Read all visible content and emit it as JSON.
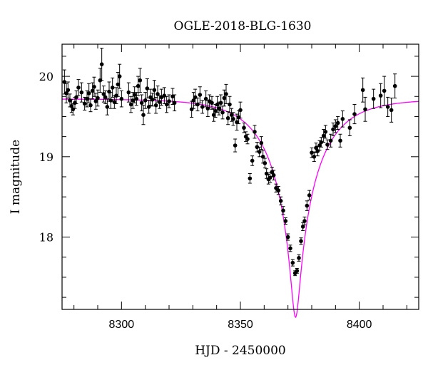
{
  "chart_data": {
    "type": "scatter",
    "title": "OGLE-2018-BLG-1630",
    "xlabel": "HJD - 2450000",
    "ylabel": "I magnitude",
    "xlim": [
      8275,
      8425
    ],
    "ylim": [
      20.4,
      17.1
    ],
    "y_inverted": true,
    "grid": false,
    "x_ticks": [
      8300,
      8350,
      8400
    ],
    "x_minor_step": 10,
    "y_ticks": [
      18,
      19,
      20
    ],
    "y_minor_step": 0.25,
    "points_color": "#000000",
    "model_color": "#ff00ff",
    "model": {
      "t0": 8373.2,
      "u0": 0.082,
      "tE": 20.5,
      "baseline_mag": 19.72
    },
    "series": [
      {
        "points": [
          [
            8276.0,
            19.93,
            0.15
          ],
          [
            8276.8,
            19.79,
            0.12
          ],
          [
            8277.5,
            19.83,
            0.1
          ],
          [
            8278.3,
            19.7,
            0.08
          ],
          [
            8279.0,
            19.63,
            0.08
          ],
          [
            8279.6,
            19.59,
            0.07
          ],
          [
            8280.4,
            19.67,
            0.07
          ],
          [
            8281.0,
            19.74,
            0.08
          ],
          [
            8281.9,
            19.86,
            0.1
          ],
          [
            8283.2,
            19.8,
            0.12
          ],
          [
            8284.5,
            19.66,
            0.08
          ],
          [
            8285.5,
            19.72,
            0.1
          ],
          [
            8286.3,
            19.79,
            0.12
          ],
          [
            8287.0,
            19.64,
            0.08
          ],
          [
            8287.8,
            19.82,
            0.1
          ],
          [
            8288.5,
            19.87,
            0.12
          ],
          [
            8289.2,
            19.69,
            0.1
          ],
          [
            8290.0,
            19.73,
            0.1
          ],
          [
            8291.0,
            19.95,
            0.15
          ],
          [
            8291.7,
            20.15,
            0.2
          ],
          [
            8292.5,
            19.78,
            0.1
          ],
          [
            8293.2,
            19.74,
            0.08
          ],
          [
            8294.0,
            19.62,
            0.1
          ],
          [
            8294.8,
            19.81,
            0.12
          ],
          [
            8295.5,
            19.7,
            0.1
          ],
          [
            8296.2,
            19.86,
            0.12
          ],
          [
            8297.0,
            19.68,
            0.08
          ],
          [
            8297.8,
            19.76,
            0.1
          ],
          [
            8298.5,
            19.9,
            0.15
          ],
          [
            8299.2,
            20.0,
            0.15
          ],
          [
            8300.0,
            19.72,
            0.1
          ],
          [
            8303.0,
            19.8,
            0.12
          ],
          [
            8304.0,
            19.65,
            0.1
          ],
          [
            8304.8,
            19.7,
            0.1
          ],
          [
            8305.5,
            19.77,
            0.1
          ],
          [
            8306.3,
            19.72,
            0.08
          ],
          [
            8307.0,
            19.88,
            0.12
          ],
          [
            8307.8,
            19.95,
            0.15
          ],
          [
            8308.5,
            19.67,
            0.1
          ],
          [
            8309.2,
            19.52,
            0.12
          ],
          [
            8310.0,
            19.7,
            0.1
          ],
          [
            8310.8,
            19.85,
            0.12
          ],
          [
            8311.5,
            19.62,
            0.08
          ],
          [
            8312.2,
            19.74,
            0.1
          ],
          [
            8313.0,
            19.71,
            0.08
          ],
          [
            8313.8,
            19.83,
            0.12
          ],
          [
            8314.5,
            19.64,
            0.1
          ],
          [
            8315.2,
            19.78,
            0.1
          ],
          [
            8316.0,
            19.68,
            0.08
          ],
          [
            8316.8,
            19.74,
            0.1
          ],
          [
            8318.0,
            19.76,
            0.1
          ],
          [
            8319.0,
            19.65,
            0.1
          ],
          [
            8320.0,
            19.69,
            0.08
          ],
          [
            8321.5,
            19.75,
            0.1
          ],
          [
            8322.3,
            19.67,
            0.1
          ],
          [
            8329.5,
            19.59,
            0.1
          ],
          [
            8330.3,
            19.7,
            0.1
          ],
          [
            8331.0,
            19.74,
            0.1
          ],
          [
            8332.0,
            19.65,
            0.08
          ],
          [
            8333.0,
            19.77,
            0.1
          ],
          [
            8334.0,
            19.62,
            0.08
          ],
          [
            8335.5,
            19.72,
            0.1
          ],
          [
            8336.3,
            19.6,
            0.1
          ],
          [
            8337.0,
            19.69,
            0.08
          ],
          [
            8338.0,
            19.67,
            0.08
          ],
          [
            8338.8,
            19.52,
            0.08
          ],
          [
            8339.5,
            19.57,
            0.08
          ],
          [
            8340.3,
            19.65,
            0.1
          ],
          [
            8341.0,
            19.6,
            0.08
          ],
          [
            8341.8,
            19.67,
            0.1
          ],
          [
            8342.5,
            19.55,
            0.08
          ],
          [
            8343.2,
            19.73,
            0.1
          ],
          [
            8344.0,
            19.78,
            0.12
          ],
          [
            8344.8,
            19.48,
            0.08
          ],
          [
            8345.5,
            19.65,
            0.1
          ],
          [
            8346.3,
            19.52,
            0.08
          ],
          [
            8347.0,
            19.47,
            0.08
          ],
          [
            8347.8,
            19.14,
            0.08
          ],
          [
            8348.5,
            19.43,
            0.1
          ],
          [
            8349.3,
            19.49,
            0.08
          ],
          [
            8350.0,
            19.58,
            0.1
          ],
          [
            8351.5,
            19.36,
            0.06
          ],
          [
            8352.3,
            19.25,
            0.06
          ],
          [
            8353.0,
            19.22,
            0.06
          ],
          [
            8354.0,
            18.73,
            0.06
          ],
          [
            8355.0,
            18.95,
            0.06
          ],
          [
            8356.0,
            19.31,
            0.08
          ],
          [
            8357.0,
            19.12,
            0.06
          ],
          [
            8358.0,
            19.06,
            0.06
          ],
          [
            8358.8,
            19.17,
            0.08
          ],
          [
            8359.5,
            19.0,
            0.08
          ],
          [
            8360.3,
            18.92,
            0.06
          ],
          [
            8361.0,
            18.79,
            0.06
          ],
          [
            8361.8,
            18.72,
            0.06
          ],
          [
            8362.5,
            18.74,
            0.06
          ],
          [
            8363.3,
            18.81,
            0.06
          ],
          [
            8364.0,
            18.77,
            0.06
          ],
          [
            8365.0,
            18.61,
            0.05
          ],
          [
            8366.0,
            18.58,
            0.05
          ],
          [
            8367.0,
            18.45,
            0.05
          ],
          [
            8368.0,
            18.33,
            0.05
          ],
          [
            8369.0,
            18.2,
            0.04
          ],
          [
            8370.0,
            18.0,
            0.04
          ],
          [
            8371.0,
            17.86,
            0.04
          ],
          [
            8372.0,
            17.68,
            0.04
          ],
          [
            8373.0,
            17.55,
            0.03
          ],
          [
            8373.8,
            17.58,
            0.03
          ],
          [
            8374.6,
            17.74,
            0.04
          ],
          [
            8375.5,
            17.95,
            0.04
          ],
          [
            8376.3,
            18.13,
            0.05
          ],
          [
            8377.0,
            18.2,
            0.05
          ],
          [
            8378.0,
            18.39,
            0.06
          ],
          [
            8379.0,
            18.52,
            0.06
          ],
          [
            8380.0,
            19.05,
            0.06
          ],
          [
            8381.0,
            19.0,
            0.06
          ],
          [
            8381.8,
            19.11,
            0.06
          ],
          [
            8382.5,
            19.07,
            0.06
          ],
          [
            8383.3,
            19.14,
            0.06
          ],
          [
            8384.0,
            19.18,
            0.06
          ],
          [
            8385.0,
            19.26,
            0.08
          ],
          [
            8385.8,
            19.31,
            0.08
          ],
          [
            8386.6,
            19.15,
            0.06
          ],
          [
            8388.0,
            19.2,
            0.08
          ],
          [
            8389.0,
            19.34,
            0.08
          ],
          [
            8390.0,
            19.38,
            0.08
          ],
          [
            8391.0,
            19.42,
            0.08
          ],
          [
            8392.0,
            19.2,
            0.08
          ],
          [
            8393.0,
            19.47,
            0.1
          ],
          [
            8396.0,
            19.36,
            0.1
          ],
          [
            8398.0,
            19.53,
            0.12
          ],
          [
            8401.5,
            19.83,
            0.15
          ],
          [
            8402.5,
            19.59,
            0.15
          ],
          [
            8406.0,
            19.72,
            0.12
          ],
          [
            8409.0,
            19.76,
            0.15
          ],
          [
            8410.5,
            19.82,
            0.18
          ],
          [
            8412.0,
            19.62,
            0.12
          ],
          [
            8413.5,
            19.58,
            0.15
          ],
          [
            8415.0,
            19.88,
            0.15
          ]
        ]
      }
    ]
  }
}
